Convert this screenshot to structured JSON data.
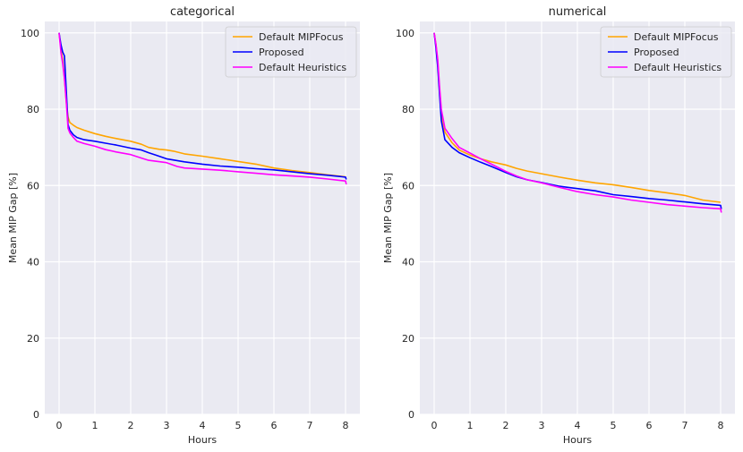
{
  "chart_data": [
    {
      "type": "line",
      "title": "categorical",
      "xlabel": "Hours",
      "ylabel": "Mean MIP Gap [%]",
      "xlim": [
        -0.4,
        8.4
      ],
      "ylim": [
        0,
        103
      ],
      "xticks": [
        0,
        1,
        2,
        3,
        4,
        5,
        6,
        7,
        8
      ],
      "yticks": [
        0,
        20,
        40,
        60,
        80,
        100
      ],
      "grid": true,
      "legend_position": "top-right",
      "series": [
        {
          "name": "Default MIPFocus",
          "color": "#ffa500",
          "points": [
            [
              0,
              100
            ],
            [
              0.05,
              96
            ],
            [
              0.1,
              93
            ],
            [
              0.15,
              88
            ],
            [
              0.2,
              82
            ],
            [
              0.25,
              78
            ],
            [
              0.3,
              76.5
            ],
            [
              0.4,
              75.8
            ],
            [
              0.5,
              75.2
            ],
            [
              0.7,
              74.5
            ],
            [
              1,
              73.6
            ],
            [
              1.3,
              72.9
            ],
            [
              1.6,
              72.3
            ],
            [
              2,
              71.6
            ],
            [
              2.3,
              70.8
            ],
            [
              2.5,
              70
            ],
            [
              2.8,
              69.5
            ],
            [
              3,
              69.3
            ],
            [
              3.2,
              69
            ],
            [
              3.5,
              68.3
            ],
            [
              4,
              67.7
            ],
            [
              4.5,
              67
            ],
            [
              5,
              66.3
            ],
            [
              5.5,
              65.6
            ],
            [
              6,
              64.6
            ],
            [
              6.5,
              63.9
            ],
            [
              7,
              63.4
            ],
            [
              7.5,
              62.8
            ],
            [
              8,
              62.3
            ]
          ]
        },
        {
          "name": "Proposed",
          "color": "#0000ff",
          "points": [
            [
              0,
              100
            ],
            [
              0.05,
              97
            ],
            [
              0.1,
              95
            ],
            [
              0.15,
              94
            ],
            [
              0.2,
              85
            ],
            [
              0.25,
              76
            ],
            [
              0.3,
              74.5
            ],
            [
              0.4,
              73.3
            ],
            [
              0.5,
              72.6
            ],
            [
              0.7,
              72
            ],
            [
              1,
              71.6
            ],
            [
              1.3,
              71.1
            ],
            [
              1.6,
              70.6
            ],
            [
              2,
              69.8
            ],
            [
              2.3,
              69.3
            ],
            [
              2.5,
              68.6
            ],
            [
              2.7,
              68
            ],
            [
              3,
              67
            ],
            [
              3.5,
              66.2
            ],
            [
              4,
              65.6
            ],
            [
              4.5,
              65.1
            ],
            [
              5,
              64.8
            ],
            [
              5.5,
              64.4
            ],
            [
              6,
              64.1
            ],
            [
              6.5,
              63.6
            ],
            [
              7,
              63.1
            ],
            [
              7.5,
              62.7
            ],
            [
              8,
              62.2
            ],
            [
              8.02,
              61.6
            ]
          ]
        },
        {
          "name": "Default Heuristics",
          "color": "#ff00ff",
          "points": [
            [
              0,
              100
            ],
            [
              0.05,
              95
            ],
            [
              0.1,
              92
            ],
            [
              0.15,
              88
            ],
            [
              0.2,
              82
            ],
            [
              0.25,
              75
            ],
            [
              0.3,
              73.8
            ],
            [
              0.4,
              72.6
            ],
            [
              0.5,
              71.6
            ],
            [
              0.7,
              71
            ],
            [
              1,
              70.3
            ],
            [
              1.3,
              69.4
            ],
            [
              1.6,
              68.8
            ],
            [
              2,
              68.1
            ],
            [
              2.3,
              67.2
            ],
            [
              2.5,
              66.6
            ],
            [
              3,
              66
            ],
            [
              3.3,
              65
            ],
            [
              3.5,
              64.6
            ],
            [
              4,
              64.3
            ],
            [
              4.5,
              64
            ],
            [
              5,
              63.6
            ],
            [
              5.5,
              63.2
            ],
            [
              6,
              62.8
            ],
            [
              6.5,
              62.5
            ],
            [
              7,
              62.2
            ],
            [
              7.5,
              61.7
            ],
            [
              8,
              61.2
            ],
            [
              8.02,
              60.3
            ]
          ]
        }
      ]
    },
    {
      "type": "line",
      "title": "numerical",
      "xlabel": "Hours",
      "ylabel": "Mean MIP Gap [%]",
      "xlim": [
        -0.4,
        8.4
      ],
      "ylim": [
        0,
        103
      ],
      "xticks": [
        0,
        1,
        2,
        3,
        4,
        5,
        6,
        7,
        8
      ],
      "yticks": [
        0,
        20,
        40,
        60,
        80,
        100
      ],
      "grid": true,
      "legend_position": "top-right",
      "series": [
        {
          "name": "Default MIPFocus",
          "color": "#ffa500",
          "points": [
            [
              0,
              100
            ],
            [
              0.05,
              97
            ],
            [
              0.1,
              92
            ],
            [
              0.15,
              85
            ],
            [
              0.2,
              79
            ],
            [
              0.3,
              74
            ],
            [
              0.5,
              71.2
            ],
            [
              0.7,
              69.3
            ],
            [
              1,
              68
            ],
            [
              1.3,
              67
            ],
            [
              1.6,
              66.2
            ],
            [
              2,
              65.4
            ],
            [
              2.3,
              64.5
            ],
            [
              2.6,
              63.8
            ],
            [
              3,
              63.1
            ],
            [
              3.5,
              62.2
            ],
            [
              4,
              61.4
            ],
            [
              4.5,
              60.7
            ],
            [
              5,
              60.2
            ],
            [
              5.5,
              59.5
            ],
            [
              6,
              58.7
            ],
            [
              6.5,
              58.1
            ],
            [
              7,
              57.4
            ],
            [
              7.5,
              56.2
            ],
            [
              8,
              55.6
            ]
          ]
        },
        {
          "name": "Proposed",
          "color": "#0000ff",
          "points": [
            [
              0,
              100
            ],
            [
              0.05,
              96
            ],
            [
              0.1,
              91
            ],
            [
              0.15,
              84
            ],
            [
              0.2,
              77
            ],
            [
              0.3,
              72
            ],
            [
              0.5,
              70
            ],
            [
              0.7,
              68.6
            ],
            [
              1,
              67.3
            ],
            [
              1.3,
              66.1
            ],
            [
              1.6,
              65
            ],
            [
              2,
              63.4
            ],
            [
              2.3,
              62.3
            ],
            [
              2.6,
              61.5
            ],
            [
              3,
              60.8
            ],
            [
              3.5,
              59.8
            ],
            [
              4,
              59.2
            ],
            [
              4.5,
              58.6
            ],
            [
              5,
              57.6
            ],
            [
              5.5,
              57.1
            ],
            [
              6,
              56.6
            ],
            [
              6.5,
              56.2
            ],
            [
              7,
              55.7
            ],
            [
              7.5,
              55.2
            ],
            [
              8,
              54.8
            ],
            [
              8.02,
              53.8
            ]
          ]
        },
        {
          "name": "Default Heuristics",
          "color": "#ff00ff",
          "points": [
            [
              0,
              100
            ],
            [
              0.05,
              97
            ],
            [
              0.1,
              93
            ],
            [
              0.15,
              86
            ],
            [
              0.2,
              80
            ],
            [
              0.3,
              75
            ],
            [
              0.5,
              72.3
            ],
            [
              0.7,
              70
            ],
            [
              1,
              68.5
            ],
            [
              1.3,
              67
            ],
            [
              1.6,
              65.6
            ],
            [
              2,
              63.7
            ],
            [
              2.3,
              62.5
            ],
            [
              2.6,
              61.5
            ],
            [
              3,
              60.7
            ],
            [
              3.5,
              59.5
            ],
            [
              4,
              58.4
            ],
            [
              4.5,
              57.6
            ],
            [
              5,
              57
            ],
            [
              5.5,
              56.2
            ],
            [
              6,
              55.6
            ],
            [
              6.5,
              55
            ],
            [
              7,
              54.6
            ],
            [
              7.5,
              54.2
            ],
            [
              8,
              53.9
            ],
            [
              8.02,
              52.9
            ]
          ]
        }
      ]
    }
  ]
}
